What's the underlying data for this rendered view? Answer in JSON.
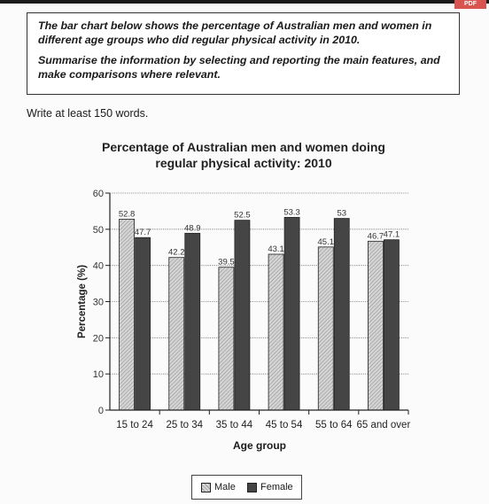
{
  "header": {
    "badge": "PDF"
  },
  "task": {
    "line1": "The bar chart below shows the percentage of Australian men and women in different age groups who did regular physical activity in 2010.",
    "line2": "Summarise the information by selecting and reporting the main features, and make comparisons where relevant."
  },
  "instruction": "Write at least 150 words.",
  "colors": {
    "male": "#c8c8c8",
    "female": "#454545",
    "grid": "#777777"
  },
  "chart_data": {
    "type": "bar",
    "title": "Percentage of Australian men and women doing regular physical activity: 2010",
    "title_line1": "Percentage of Australian men and women doing",
    "title_line2": "regular physical activity: 2010",
    "xlabel": "Age group",
    "ylabel": "Percentage (%)",
    "ylim": [
      0,
      60
    ],
    "yticks": [
      0,
      10,
      20,
      30,
      40,
      50,
      60
    ],
    "grid": true,
    "legend_position": "bottom",
    "categories": [
      "15 to 24",
      "25 to 34",
      "35 to 44",
      "45 to 54",
      "55 to 64",
      "65 and over"
    ],
    "series": [
      {
        "name": "Male",
        "values": [
          52.8,
          42.2,
          39.5,
          43.1,
          45.1,
          46.7
        ]
      },
      {
        "name": "Female",
        "values": [
          47.7,
          48.9,
          52.5,
          53.3,
          53,
          47.1
        ]
      }
    ],
    "data_labels": [
      [
        "52.8",
        "42.2",
        "39.5",
        "43.1",
        "45.1",
        "46.7"
      ],
      [
        "47.7",
        "48.9",
        "52.5",
        "53.3",
        "53",
        "47.1"
      ]
    ]
  }
}
